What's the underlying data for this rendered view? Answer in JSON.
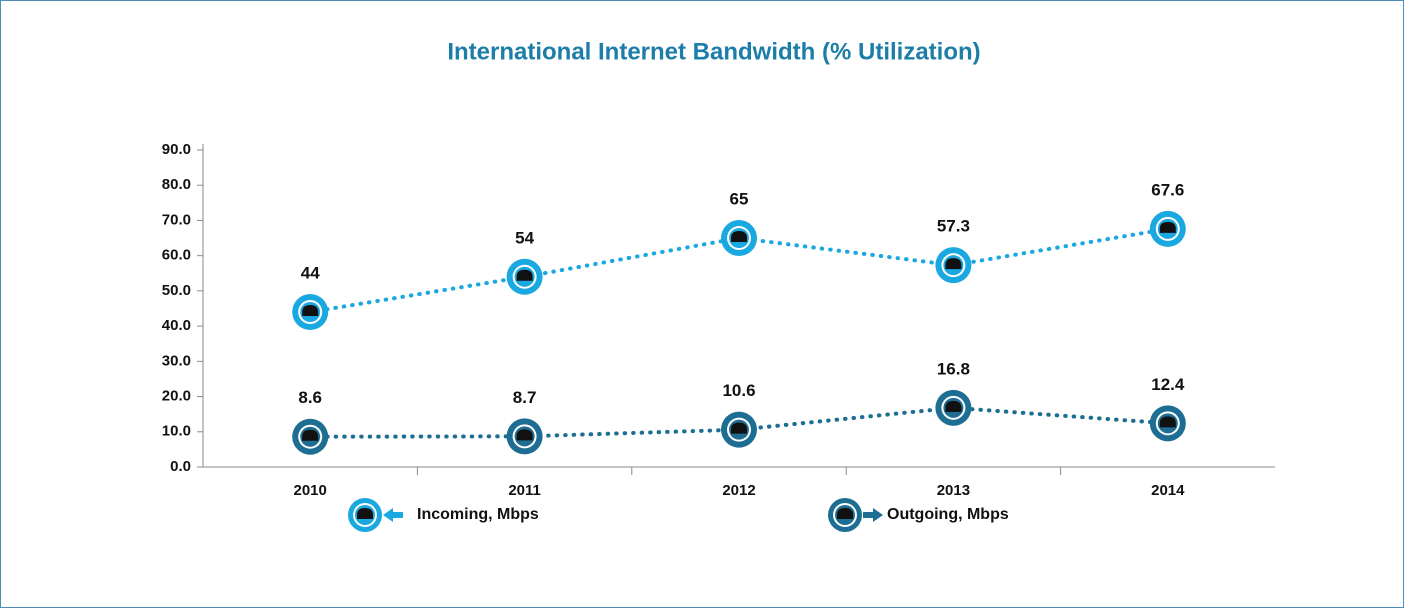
{
  "chart_data": {
    "type": "line",
    "title": "International Internet Bandwidth (% Utilization)",
    "categories": [
      "2010",
      "2011",
      "2012",
      "2013",
      "2014"
    ],
    "series": [
      {
        "name": "Incoming, Mbps",
        "color": "#1aa8e0",
        "values": [
          44,
          54,
          65,
          57.3,
          67.6
        ]
      },
      {
        "name": "Outgoing, Mbps",
        "color": "#1d6e92",
        "values": [
          8.6,
          8.7,
          10.6,
          16.8,
          12.4
        ]
      }
    ],
    "ylim": [
      0,
      90
    ],
    "yticks": [
      {
        "value": 0,
        "label": "0.0"
      },
      {
        "value": 10,
        "label": "10.0"
      },
      {
        "value": 20,
        "label": "20.0"
      },
      {
        "value": 30,
        "label": "30.0"
      },
      {
        "value": 40,
        "label": "40.0"
      },
      {
        "value": 50,
        "label": "50.0"
      },
      {
        "value": 60,
        "label": "60.0"
      },
      {
        "value": 70,
        "label": "70.0"
      },
      {
        "value": 80,
        "label": "80.0"
      },
      {
        "value": 90,
        "label": "90.0"
      }
    ]
  }
}
